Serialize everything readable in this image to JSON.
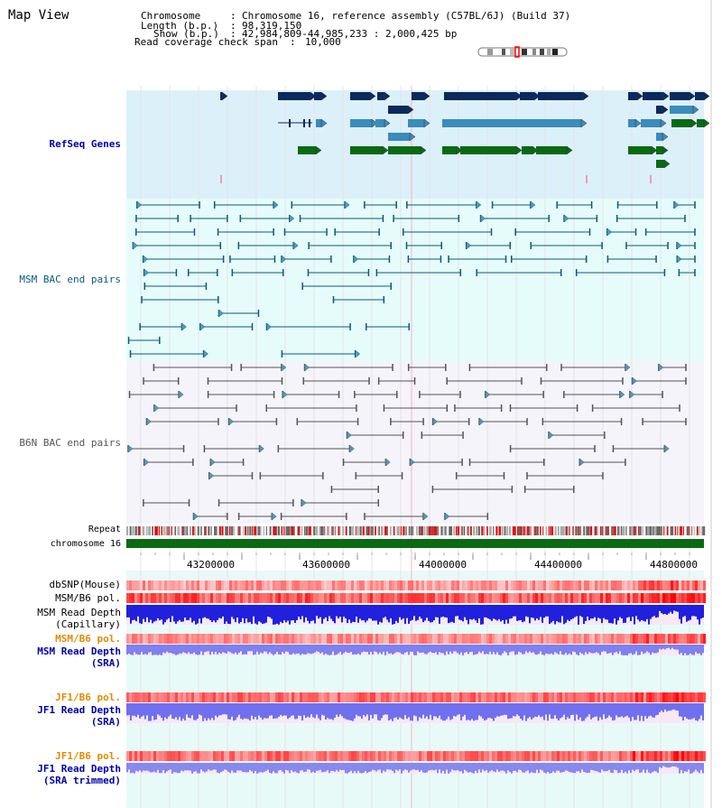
{
  "page": {
    "title": "Map View"
  },
  "header": {
    "chromosome_key": "Chromosome",
    "chromosome_val": "Chromosome 16, reference assembly (C57BL/6J) (Build 37)",
    "length_key": "Length (b.p.)",
    "length_val": "98,319,150",
    "show_key": "Show (b.p.)",
    "show_val": "42,984,809-44,985,233 : 2,000,425 bp",
    "coverage_key": "Read coverage check span",
    "coverage_val": "10,000"
  },
  "tracks": {
    "refseq": "RefSeq Genes",
    "msm_bac": "MSM BAC end pairs",
    "b6n_bac": "B6N BAC end pairs",
    "repeat": "Repeat",
    "chromosome": "chromosome 16",
    "dbsnp": "dbSNP(Mouse)",
    "msm_b6_pol": "MSM/B6 pol.",
    "msm_depth_cap_1": "MSM Read Depth",
    "msm_depth_cap_2": "(Capillary)",
    "msm_b6_pol_2": "MSM/B6 pol.",
    "msm_depth_sra_1": "MSM Read Depth",
    "msm_depth_sra_2": "(SRA)",
    "jf1_pol_1": "JF1/B6 pol.",
    "jf1_depth_sra_1": "JF1 Read Depth",
    "jf1_depth_sra_2": "(SRA)",
    "jf1_pol_2": "JF1/B6 pol.",
    "jf1_depth_trim_1": "JF1 Read Depth",
    "jf1_depth_trim_2": "(SRA trimmed)"
  },
  "ruler": {
    "ticks": [
      "43200000",
      "43600000",
      "44000000",
      "44400000",
      "44800000"
    ]
  },
  "colors": {
    "refseq_bg": "#dcf0fa",
    "msm_bg": "#e6fcfa",
    "b6n_bg": "#f4f4fa",
    "bottom_bg": "#e8faf8",
    "gene_navy": "#0a2a5c",
    "gene_teal": "#3a8cba",
    "gene_green": "#0a6a14",
    "bac_msm": "#0a5a7a",
    "bac_b6n": "#555555",
    "chrom_green": "#0a6a14",
    "label_blue": "#0000aa",
    "label_orange": "#e08c00"
  }
}
